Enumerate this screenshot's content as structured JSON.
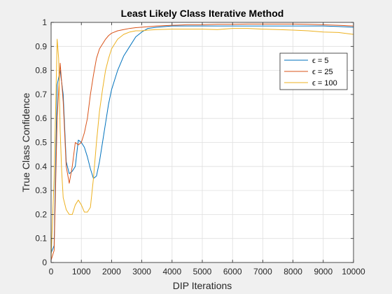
{
  "chart_data": {
    "type": "line",
    "title": "Least Likely Class Iterative Method",
    "xlabel": "DIP Iterations",
    "ylabel": "True Class Confidence",
    "xlim": [
      0,
      10000
    ],
    "ylim": [
      0,
      1
    ],
    "xticks": [
      0,
      1000,
      2000,
      3000,
      4000,
      5000,
      6000,
      7000,
      8000,
      9000,
      10000
    ],
    "yticks": [
      0,
      0.1,
      0.2,
      0.3,
      0.4,
      0.5,
      0.6,
      0.7,
      0.8,
      0.9,
      1
    ],
    "grid": true,
    "legend_position": "top-right",
    "series": [
      {
        "name": "ϵ = 5",
        "color": "#0072BD",
        "x": [
          0,
          100,
          200,
          300,
          400,
          500,
          600,
          700,
          800,
          900,
          1000,
          1100,
          1200,
          1300,
          1400,
          1500,
          1600,
          1700,
          1800,
          1900,
          2000,
          2200,
          2400,
          2600,
          2800,
          3000,
          3200,
          3500,
          4000,
          4500,
          5000,
          5500,
          6000,
          6500,
          7000,
          7500,
          8000,
          8500,
          9000,
          9500,
          10000
        ],
        "y": [
          0.04,
          0.07,
          0.74,
          0.8,
          0.7,
          0.42,
          0.37,
          0.38,
          0.4,
          0.51,
          0.5,
          0.48,
          0.44,
          0.39,
          0.35,
          0.36,
          0.42,
          0.5,
          0.58,
          0.66,
          0.72,
          0.8,
          0.86,
          0.9,
          0.94,
          0.96,
          0.975,
          0.98,
          0.985,
          0.985,
          0.985,
          0.985,
          0.985,
          0.985,
          0.985,
          0.985,
          0.985,
          0.985,
          0.985,
          0.983,
          0.98
        ]
      },
      {
        "name": "ϵ = 25",
        "color": "#D95319",
        "x": [
          0,
          100,
          200,
          300,
          400,
          500,
          600,
          700,
          800,
          900,
          1000,
          1100,
          1200,
          1300,
          1400,
          1500,
          1600,
          1700,
          1800,
          1900,
          2000,
          2200,
          2400,
          2600,
          2800,
          3000,
          3200,
          3500,
          4000,
          4500,
          5000,
          5500,
          6000,
          6500,
          7000,
          7500,
          8000,
          8500,
          9000,
          9500,
          10000
        ],
        "y": [
          0.01,
          0.05,
          0.6,
          0.83,
          0.67,
          0.4,
          0.33,
          0.4,
          0.5,
          0.49,
          0.5,
          0.54,
          0.6,
          0.7,
          0.78,
          0.85,
          0.89,
          0.91,
          0.93,
          0.945,
          0.955,
          0.965,
          0.97,
          0.975,
          0.978,
          0.98,
          0.982,
          0.985,
          0.988,
          0.99,
          0.99,
          0.992,
          0.992,
          0.993,
          0.993,
          0.993,
          0.993,
          0.992,
          0.99,
          0.988,
          0.985
        ]
      },
      {
        "name": "ϵ = 100",
        "color": "#EDB120",
        "x": [
          0,
          100,
          200,
          250,
          300,
          350,
          400,
          500,
          600,
          700,
          800,
          900,
          1000,
          1100,
          1200,
          1300,
          1400,
          1500,
          1600,
          1700,
          1800,
          1900,
          2000,
          2200,
          2400,
          2600,
          2800,
          3000,
          3200,
          3500,
          4000,
          4500,
          5000,
          5500,
          6000,
          6500,
          7000,
          7500,
          8000,
          8500,
          9000,
          9500,
          10000
        ],
        "y": [
          0.02,
          0.35,
          0.93,
          0.85,
          0.55,
          0.38,
          0.27,
          0.22,
          0.2,
          0.2,
          0.24,
          0.26,
          0.24,
          0.21,
          0.21,
          0.23,
          0.35,
          0.5,
          0.63,
          0.72,
          0.8,
          0.85,
          0.89,
          0.93,
          0.95,
          0.96,
          0.965,
          0.965,
          0.968,
          0.97,
          0.972,
          0.972,
          0.972,
          0.97,
          0.975,
          0.975,
          0.972,
          0.97,
          0.968,
          0.965,
          0.96,
          0.958,
          0.95
        ]
      }
    ]
  }
}
